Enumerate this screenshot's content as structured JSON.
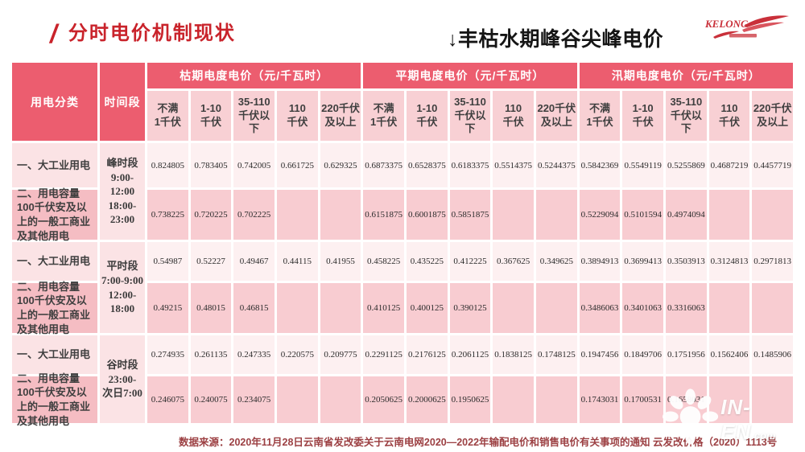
{
  "page": {
    "title_slash": "/",
    "title": "分时电价机制现状",
    "subtitle": "↓丰枯水期峰谷尖峰电价",
    "footer": "数据来源：2020年11月28日云南省发改委关于云南电网2020—2022年输配电价和销售电价有关事项的通知 云发改价格（2020）1113号"
  },
  "logo": {
    "text": "KELONG"
  },
  "watermark": {
    "main": "IN-EN",
    "suffix": ".com"
  },
  "colors": {
    "title_red": "#c9232b",
    "header_red": "#ec5d6f",
    "subheader_pink": "#f8d0d4",
    "row_light": "#fbe3e5",
    "cell_light": "#fdf0f1",
    "row_dark": "#f5bdc3",
    "cell_dark": "#f8ccd1",
    "footer_text": "#9c4043"
  },
  "table": {
    "category_header": "用电分类",
    "time_header": "时间段",
    "groups": [
      "枯期电度电价（元/千瓦时）",
      "平期电度电价（元/千瓦时）",
      "汛期电度电价（元/千瓦时）"
    ],
    "voltage_columns": [
      "不满\n1千伏",
      "1-10\n千伏",
      "35-110\n千伏以下",
      "110\n千伏",
      "220千伏\n及以上"
    ],
    "rows": [
      {
        "category": "一、大工业用电",
        "time": "峰时段\n9:00-12:00\n18:00-\n23:00",
        "shade": "light",
        "values": [
          "0.824805",
          "0.783405",
          "0.742005",
          "0.661725",
          "0.629325",
          "0.6873375",
          "0.6528375",
          "0.6183375",
          "0.5514375",
          "0.5244375",
          "0.5842369",
          "0.5549119",
          "0.5255869",
          "0.4687219",
          "0.4457719"
        ]
      },
      {
        "category": "二、用电容量100千伏安及以上的一般工商业及其他用电",
        "shade": "dark",
        "values": [
          "0.738225",
          "0.720225",
          "0.702225",
          "",
          "",
          "0.6151875",
          "0.6001875",
          "0.5851875",
          "",
          "",
          "0.5229094",
          "0.5101594",
          "0.4974094",
          "",
          ""
        ]
      },
      {
        "category": "一、大工业用电",
        "time": "平时段\n7:00-9:00\n12:00-\n18:00",
        "shade": "light",
        "values": [
          "0.54987",
          "0.52227",
          "0.49467",
          "0.44115",
          "0.41955",
          "0.458225",
          "0.435225",
          "0.412225",
          "0.367625",
          "0.349625",
          "0.3894913",
          "0.3699413",
          "0.3503913",
          "0.3124813",
          "0.2971813"
        ]
      },
      {
        "category": "二、用电容量100千伏安及以上的一般工商业及其他用电",
        "shade": "dark",
        "values": [
          "0.49215",
          "0.48015",
          "0.46815",
          "",
          "",
          "0.410125",
          "0.400125",
          "0.390125",
          "",
          "",
          "0.3486063",
          "0.3401063",
          "0.3316063",
          "",
          ""
        ]
      },
      {
        "category": "一、大工业用电",
        "time": "谷时段\n23:00-\n次日7:00",
        "shade": "light",
        "values": [
          "0.274935",
          "0.261135",
          "0.247335",
          "0.220575",
          "0.209775",
          "0.2291125",
          "0.2176125",
          "0.2061125",
          "0.1838125",
          "0.1748125",
          "0.1947456",
          "0.1849706",
          "0.1751956",
          "0.1562406",
          "0.1485906"
        ]
      },
      {
        "category": "二、用电容量100千伏安及以上的一般工商业及其他用电",
        "shade": "dark",
        "values": [
          "0.246075",
          "0.240075",
          "0.234075",
          "",
          "",
          "0.2050625",
          "0.2000625",
          "0.1950625",
          "",
          "",
          "0.1743031",
          "0.1700531",
          "0.1658031",
          "",
          ""
        ]
      }
    ]
  }
}
